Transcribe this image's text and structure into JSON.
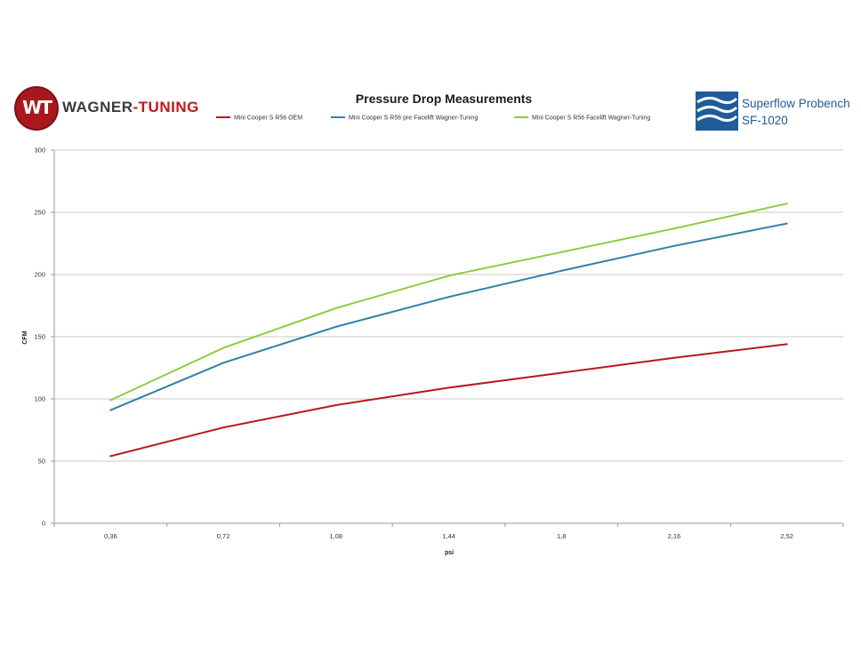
{
  "logos": {
    "left_text_1": "WAGNER",
    "left_text_2": "-TUNING",
    "left_badge": "WT",
    "right_line_1": "Superflow Probench",
    "right_line_2": "SF-1020"
  },
  "chart_data": {
    "type": "line",
    "title": "Pressure Drop Measurements",
    "xlabel": "psi",
    "ylabel": "CFM",
    "categories": [
      "0,36",
      "0,72",
      "1,08",
      "1,44",
      "1,8",
      "2,16",
      "2,52"
    ],
    "ylim": [
      0,
      300
    ],
    "yticks": [
      0,
      50,
      100,
      150,
      200,
      250,
      300
    ],
    "grid": true,
    "legend_position": "top",
    "series": [
      {
        "name": "Mini Cooper S R56 OEM",
        "color": "#b8181c",
        "values": [
          54,
          77,
          95,
          109,
          121,
          133,
          144
        ]
      },
      {
        "name": "Mini Cooper S R56 pre Facelift Wagner-Tuning",
        "color": "#2f82a8",
        "values": [
          91,
          129,
          158,
          182,
          203,
          223,
          241
        ]
      },
      {
        "name": "Mini Cooper S R56 Facelift Wagner-Tuning",
        "color": "#8ccc3c",
        "values": [
          99,
          141,
          173,
          199,
          218,
          237,
          257
        ]
      }
    ]
  }
}
